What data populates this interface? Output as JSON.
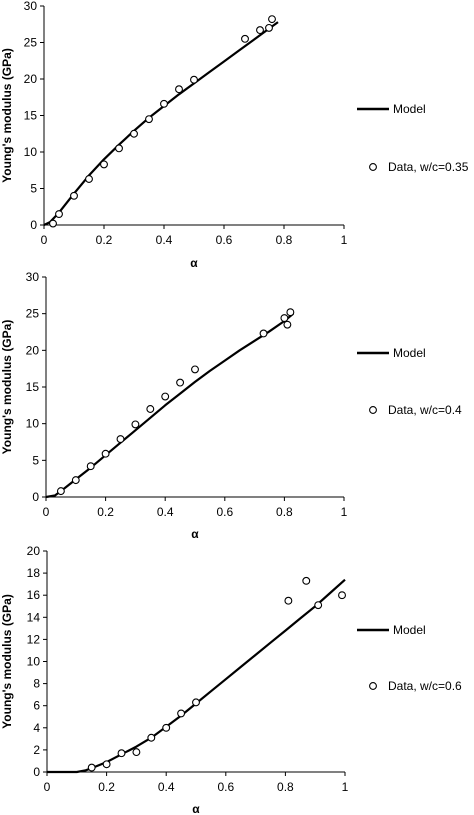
{
  "chart_data": [
    {
      "type": "scatter",
      "xlabel": "α",
      "ylabel": "Young's modulus (GPa)",
      "xlim": [
        0,
        1
      ],
      "ylim": [
        0,
        30
      ],
      "xticks": [
        "0",
        "0.2",
        "0.4",
        "0.6",
        "0.8",
        "1"
      ],
      "yticks": [
        "0",
        "5",
        "10",
        "15",
        "20",
        "25",
        "30"
      ],
      "grid": false,
      "legend_position": "right",
      "series": [
        {
          "name": "Model",
          "kind": "line",
          "x": [
            0.0,
            0.02,
            0.05,
            0.1,
            0.15,
            0.2,
            0.25,
            0.3,
            0.35,
            0.4,
            0.45,
            0.5,
            0.55,
            0.6,
            0.65,
            0.7,
            0.75,
            0.78
          ],
          "y": [
            0.0,
            0.4,
            1.7,
            4.3,
            6.8,
            9.0,
            11.0,
            12.9,
            14.7,
            16.3,
            17.9,
            19.4,
            20.9,
            22.4,
            23.9,
            25.4,
            26.9,
            27.8
          ]
        },
        {
          "name": "Data, w/c=0.35",
          "kind": "marker",
          "x": [
            0.03,
            0.05,
            0.1,
            0.15,
            0.2,
            0.25,
            0.3,
            0.35,
            0.4,
            0.45,
            0.5,
            0.67,
            0.72,
            0.75,
            0.76
          ],
          "y": [
            0.2,
            1.5,
            4.0,
            6.3,
            8.3,
            10.5,
            12.5,
            14.5,
            16.6,
            18.6,
            19.9,
            25.5,
            26.7,
            27.0,
            28.2
          ]
        }
      ]
    },
    {
      "type": "scatter",
      "xlabel": "α",
      "ylabel": "Young's modulus (GPa)",
      "xlim": [
        0,
        1
      ],
      "ylim": [
        0,
        30
      ],
      "xticks": [
        "0",
        "0.2",
        "0.4",
        "0.6",
        "0.8",
        "1"
      ],
      "yticks": [
        "0",
        "5",
        "10",
        "15",
        "20",
        "25",
        "30"
      ],
      "grid": false,
      "legend_position": "right",
      "series": [
        {
          "name": "Model",
          "kind": "line",
          "x": [
            0.0,
            0.03,
            0.05,
            0.1,
            0.15,
            0.2,
            0.25,
            0.3,
            0.35,
            0.4,
            0.45,
            0.5,
            0.55,
            0.6,
            0.65,
            0.7,
            0.75,
            0.8,
            0.83
          ],
          "y": [
            0.0,
            0.2,
            0.8,
            2.4,
            4.0,
            5.7,
            7.4,
            9.1,
            10.8,
            12.5,
            14.1,
            15.7,
            17.2,
            18.6,
            20.0,
            21.3,
            22.6,
            24.0,
            25.0
          ]
        },
        {
          "name": "Data, w/c=0.4",
          "kind": "marker",
          "x": [
            0.05,
            0.1,
            0.15,
            0.2,
            0.25,
            0.3,
            0.35,
            0.4,
            0.45,
            0.5,
            0.73,
            0.8,
            0.81,
            0.82
          ],
          "y": [
            0.8,
            2.3,
            4.2,
            5.9,
            7.9,
            9.9,
            12.0,
            13.7,
            15.6,
            17.4,
            22.3,
            24.4,
            23.5,
            25.2
          ]
        }
      ]
    },
    {
      "type": "scatter",
      "xlabel": "α",
      "ylabel": "Young's modulus (GPa)",
      "xlim": [
        0,
        1
      ],
      "ylim": [
        0,
        20
      ],
      "xticks": [
        "0",
        "0.2",
        "0.4",
        "0.6",
        "0.8",
        "1"
      ],
      "yticks": [
        "0",
        "2",
        "4",
        "6",
        "8",
        "10",
        "12",
        "14",
        "16",
        "18",
        "20"
      ],
      "grid": false,
      "legend_position": "right",
      "series": [
        {
          "name": "Model",
          "kind": "line",
          "x": [
            0.0,
            0.1,
            0.13,
            0.15,
            0.2,
            0.25,
            0.3,
            0.35,
            0.4,
            0.45,
            0.5,
            0.55,
            0.6,
            0.65,
            0.7,
            0.75,
            0.8,
            0.85,
            0.9,
            0.95,
            1.0
          ],
          "y": [
            0.0,
            0.0,
            0.15,
            0.35,
            0.9,
            1.6,
            2.3,
            3.1,
            4.1,
            5.1,
            6.2,
            7.3,
            8.4,
            9.5,
            10.6,
            11.7,
            12.8,
            13.9,
            15.0,
            16.2,
            17.4
          ]
        },
        {
          "name": "Data, w/c=0.6",
          "kind": "marker",
          "x": [
            0.15,
            0.2,
            0.25,
            0.3,
            0.35,
            0.4,
            0.45,
            0.5,
            0.81,
            0.87,
            0.91,
            0.99
          ],
          "y": [
            0.4,
            0.7,
            1.7,
            1.8,
            3.1,
            4.0,
            5.3,
            6.3,
            15.5,
            17.3,
            15.1,
            16.0
          ]
        }
      ]
    }
  ]
}
